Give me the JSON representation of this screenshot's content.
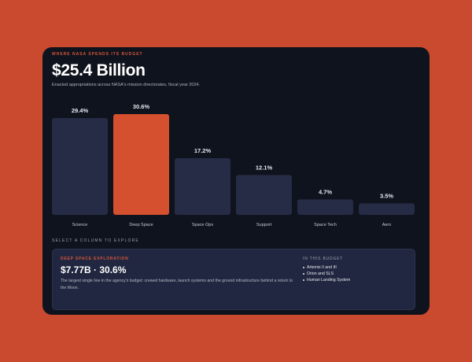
{
  "header": {
    "eyebrow": "WHERE NASA SPENDS ITS BUDGET",
    "headline": "$25.4 Billion",
    "subtitle": "Enacted appropriations across NASA's mission directorates, fiscal year 2024."
  },
  "chart_data": {
    "type": "bar",
    "categories": [
      "Science",
      "Deep Space",
      "Space Ops",
      "Support",
      "Space Tech",
      "Aero"
    ],
    "values": [
      29.4,
      30.6,
      17.2,
      12.1,
      4.7,
      3.5
    ],
    "value_labels": [
      "29.4%",
      "30.6%",
      "17.2%",
      "12.1%",
      "4.7%",
      "3.5%"
    ],
    "unit": "%",
    "selected_index": 1,
    "ylim": [
      0,
      30.6
    ],
    "grid": false,
    "legend": "none"
  },
  "colors": {
    "background": "#c94a2f",
    "card": "#0f131d",
    "bar_default": "#262c45",
    "bar_selected": "#d4502f",
    "accent": "#d8573a",
    "panel": "#212740"
  },
  "select_hint": "SELECT A COLUMN TO EXPLORE",
  "detail": {
    "eyebrow": "DEEP SPACE EXPLORATION",
    "value": "$7.77B · 30.6%",
    "description": "The largest single line in the agency's budget: crewed hardware, launch systems and the ground infrastructure behind a return to the Moon.",
    "side_title": "IN THIS BUDGET",
    "items": [
      "Artemis II and III",
      "Orion and SLS",
      "Human Landing System"
    ]
  }
}
